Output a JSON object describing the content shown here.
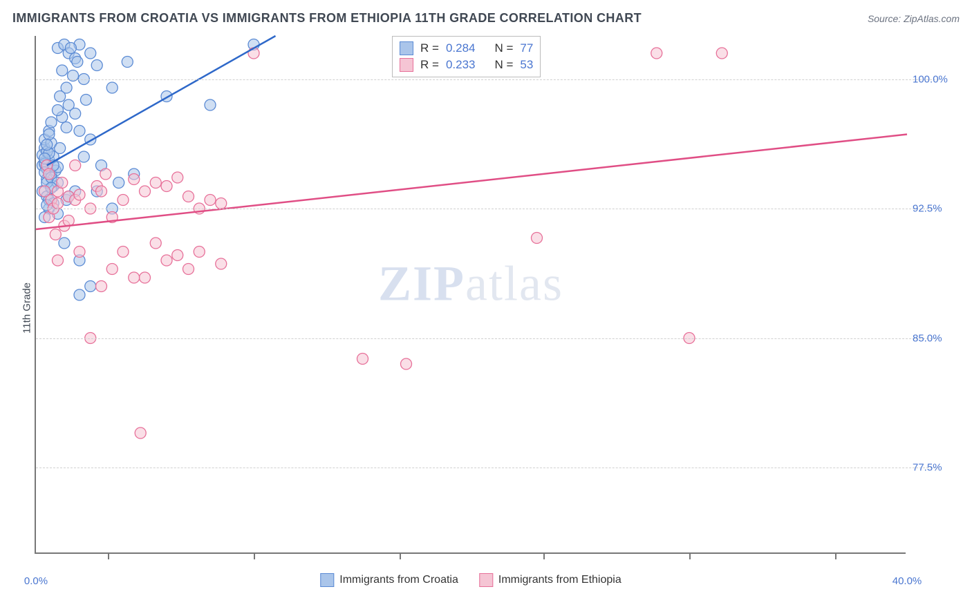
{
  "title": "IMMIGRANTS FROM CROATIA VS IMMIGRANTS FROM ETHIOPIA 11TH GRADE CORRELATION CHART",
  "source_label": "Source: ZipAtlas.com",
  "y_axis_label": "11th Grade",
  "watermark_a": "ZIP",
  "watermark_b": "atlas",
  "plot": {
    "type": "scatter",
    "x_min": 0.0,
    "x_max": 40.0,
    "y_min": 72.5,
    "y_max": 102.5,
    "y_ticks": [
      {
        "v": 100.0,
        "label": "100.0%"
      },
      {
        "v": 92.5,
        "label": "92.5%"
      },
      {
        "v": 85.0,
        "label": "85.0%"
      },
      {
        "v": 77.5,
        "label": "77.5%"
      }
    ],
    "x_ticks": [
      3.3,
      10,
      16.7,
      23.3,
      30,
      36.7
    ],
    "x_tick_labels": [
      {
        "v": 0.0,
        "label": "0.0%"
      },
      {
        "v": 40.0,
        "label": "40.0%"
      }
    ],
    "marker_radius": 8,
    "marker_stroke_width": 1.3,
    "line_width": 2.5,
    "background_color": "#ffffff",
    "grid_color": "#d0d0d0",
    "series": [
      {
        "key": "croatia",
        "legend_label": "Immigrants from Croatia",
        "fill": "#aac5ea",
        "stroke": "#5a8ad4",
        "line_color": "#2e68c9",
        "R_label": "R =",
        "R_value": "0.284",
        "N_label": "N =",
        "N_value": "77",
        "trend": {
          "x1": 0.5,
          "y1": 95.0,
          "x2": 11.0,
          "y2": 102.5
        },
        "points": [
          [
            0.3,
            95.0
          ],
          [
            0.4,
            95.2
          ],
          [
            0.5,
            94.8
          ],
          [
            0.4,
            96.0
          ],
          [
            0.6,
            95.3
          ],
          [
            0.7,
            94.5
          ],
          [
            0.3,
            95.6
          ],
          [
            0.5,
            94.2
          ],
          [
            0.8,
            95.5
          ],
          [
            0.4,
            96.5
          ],
          [
            0.6,
            97.0
          ],
          [
            0.9,
            94.7
          ],
          [
            0.5,
            95.8
          ],
          [
            0.7,
            96.3
          ],
          [
            0.4,
            95.1
          ],
          [
            0.6,
            95.7
          ],
          [
            0.8,
            93.8
          ],
          [
            0.5,
            94.0
          ],
          [
            0.3,
            93.5
          ],
          [
            0.7,
            97.5
          ],
          [
            1.0,
            94.9
          ],
          [
            0.4,
            94.6
          ],
          [
            0.6,
            96.8
          ],
          [
            0.5,
            93.2
          ],
          [
            0.8,
            95.0
          ],
          [
            0.4,
            95.4
          ],
          [
            1.1,
            96.0
          ],
          [
            0.7,
            94.3
          ],
          [
            0.6,
            93.0
          ],
          [
            0.5,
            96.2
          ],
          [
            1.0,
            101.8
          ],
          [
            1.3,
            102.0
          ],
          [
            1.5,
            101.5
          ],
          [
            2.0,
            102.0
          ],
          [
            1.8,
            101.2
          ],
          [
            1.2,
            100.5
          ],
          [
            1.6,
            101.8
          ],
          [
            2.2,
            100.0
          ],
          [
            1.4,
            99.5
          ],
          [
            1.9,
            101.0
          ],
          [
            2.5,
            101.5
          ],
          [
            1.1,
            99.0
          ],
          [
            2.8,
            100.8
          ],
          [
            1.7,
            100.2
          ],
          [
            2.3,
            98.8
          ],
          [
            1.5,
            98.5
          ],
          [
            1.2,
            97.8
          ],
          [
            2.0,
            97.0
          ],
          [
            1.8,
            98.0
          ],
          [
            2.5,
            96.5
          ],
          [
            1.4,
            97.2
          ],
          [
            1.0,
            98.2
          ],
          [
            2.2,
            95.5
          ],
          [
            2.8,
            93.5
          ],
          [
            3.5,
            92.5
          ],
          [
            3.0,
            95.0
          ],
          [
            3.8,
            94.0
          ],
          [
            4.5,
            94.5
          ],
          [
            2.0,
            89.5
          ],
          [
            1.3,
            90.5
          ],
          [
            2.5,
            88.0
          ],
          [
            2.0,
            87.5
          ],
          [
            1.4,
            93.0
          ],
          [
            1.8,
            93.5
          ],
          [
            0.8,
            92.8
          ],
          [
            0.6,
            92.5
          ],
          [
            0.4,
            92.0
          ],
          [
            1.0,
            92.2
          ],
          [
            1.5,
            93.2
          ],
          [
            6.0,
            99.0
          ],
          [
            8.0,
            98.5
          ],
          [
            10.0,
            102.0
          ],
          [
            4.2,
            101.0
          ],
          [
            3.5,
            99.5
          ],
          [
            1.0,
            94.0
          ],
          [
            0.7,
            93.7
          ],
          [
            0.5,
            92.7
          ]
        ]
      },
      {
        "key": "ethiopia",
        "legend_label": "Immigrants from Ethiopia",
        "fill": "#f5c5d4",
        "stroke": "#e77099",
        "line_color": "#e04e85",
        "R_label": "R =",
        "R_value": "0.233",
        "N_label": "N =",
        "N_value": "53",
        "trend": {
          "x1": 0.0,
          "y1": 91.3,
          "x2": 40.0,
          "y2": 96.8
        },
        "points": [
          [
            0.5,
            95.0
          ],
          [
            0.7,
            93.0
          ],
          [
            1.0,
            93.5
          ],
          [
            0.6,
            92.0
          ],
          [
            1.2,
            94.0
          ],
          [
            0.8,
            92.5
          ],
          [
            1.5,
            93.2
          ],
          [
            0.4,
            93.5
          ],
          [
            1.0,
            92.8
          ],
          [
            1.3,
            91.5
          ],
          [
            1.8,
            93.0
          ],
          [
            0.9,
            91.0
          ],
          [
            1.5,
            91.8
          ],
          [
            2.0,
            93.3
          ],
          [
            2.5,
            92.5
          ],
          [
            2.8,
            93.8
          ],
          [
            3.2,
            94.5
          ],
          [
            3.5,
            92.0
          ],
          [
            3.0,
            93.5
          ],
          [
            4.0,
            93.0
          ],
          [
            4.5,
            94.2
          ],
          [
            5.0,
            93.5
          ],
          [
            5.5,
            94.0
          ],
          [
            6.0,
            93.8
          ],
          [
            6.5,
            94.3
          ],
          [
            7.0,
            93.2
          ],
          [
            7.5,
            92.5
          ],
          [
            8.0,
            93.0
          ],
          [
            8.5,
            92.8
          ],
          [
            4.0,
            90.0
          ],
          [
            5.5,
            90.5
          ],
          [
            6.5,
            89.8
          ],
          [
            7.5,
            90.0
          ],
          [
            3.5,
            89.0
          ],
          [
            4.5,
            88.5
          ],
          [
            6.0,
            89.5
          ],
          [
            7.0,
            89.0
          ],
          [
            8.5,
            89.3
          ],
          [
            2.5,
            85.0
          ],
          [
            10.0,
            101.5
          ],
          [
            17.0,
            83.5
          ],
          [
            15.0,
            83.8
          ],
          [
            23.0,
            90.8
          ],
          [
            28.5,
            101.5
          ],
          [
            31.5,
            101.5
          ],
          [
            30.0,
            85.0
          ],
          [
            4.8,
            79.5
          ],
          [
            1.0,
            89.5
          ],
          [
            2.0,
            90.0
          ],
          [
            0.6,
            94.5
          ],
          [
            1.8,
            95.0
          ],
          [
            3.0,
            88.0
          ],
          [
            5.0,
            88.5
          ]
        ]
      }
    ]
  }
}
